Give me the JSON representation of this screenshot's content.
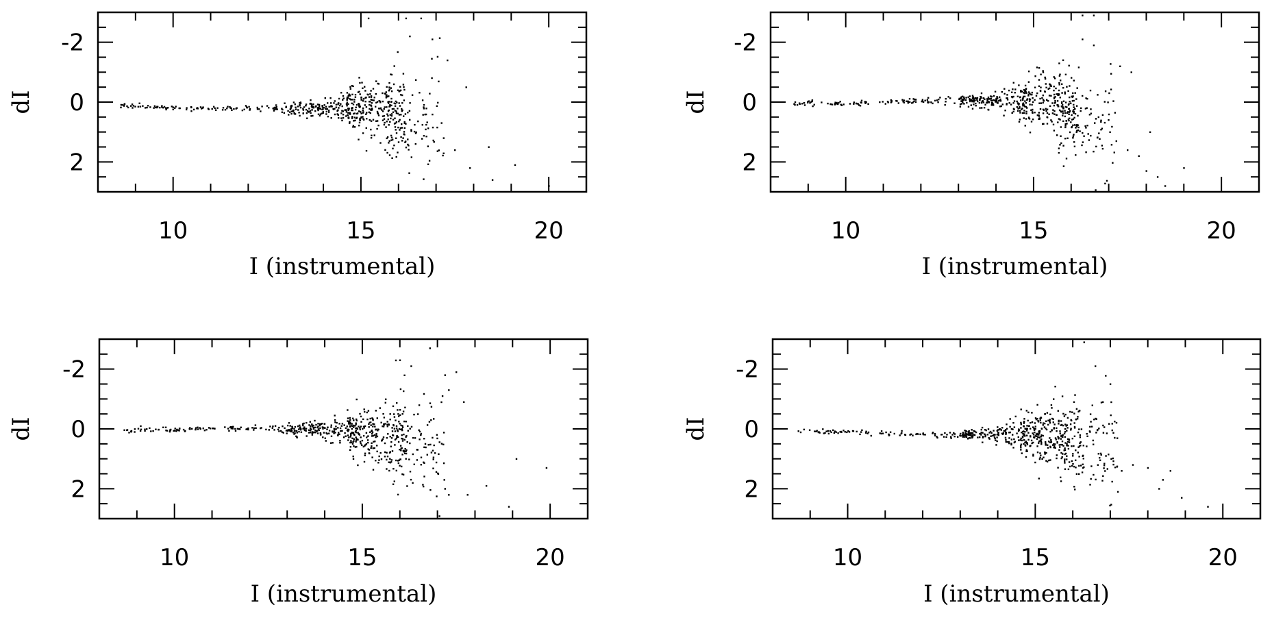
{
  "chart_data": [
    {
      "type": "scatter",
      "xlabel": "I (instrumental)",
      "ylabel": "dI",
      "xlim": [
        8,
        21
      ],
      "ylim": [
        3,
        -3
      ],
      "xticks": [
        10,
        15,
        20
      ],
      "yticks": [
        -2,
        0,
        2
      ],
      "x_minor_step": 1,
      "y_minor_step": 0.5,
      "grid": false,
      "trend": [
        [
          8.5,
          0.12
        ],
        [
          10,
          0.18
        ],
        [
          11,
          0.2
        ],
        [
          12,
          0.22
        ],
        [
          13,
          0.22
        ],
        [
          14,
          0.2
        ],
        [
          15,
          0.22
        ],
        [
          16,
          0.45
        ],
        [
          17,
          0.8
        ]
      ],
      "tail_points": [
        [
          16.2,
          -2.8
        ],
        [
          16.6,
          -2.8
        ],
        [
          16.3,
          -2.2
        ],
        [
          16.9,
          -2.1
        ],
        [
          17.3,
          -1.4
        ],
        [
          17.8,
          -0.5
        ],
        [
          17.2,
          1.2
        ],
        [
          17.5,
          1.6
        ],
        [
          17.9,
          2.2
        ],
        [
          18.4,
          1.5
        ],
        [
          18.5,
          2.6
        ],
        [
          19.1,
          2.1
        ],
        [
          20.0,
          2.8
        ],
        [
          15.2,
          -2.8
        ]
      ]
    },
    {
      "type": "scatter",
      "xlabel": "I (instrumental)",
      "ylabel": "dI",
      "xlim": [
        8,
        21
      ],
      "ylim": [
        3,
        -3
      ],
      "xticks": [
        10,
        15,
        20
      ],
      "yticks": [
        -2,
        0,
        2
      ],
      "x_minor_step": 1,
      "y_minor_step": 0.5,
      "grid": false,
      "trend": [
        [
          8.7,
          0.05
        ],
        [
          10,
          0.05
        ],
        [
          11,
          0.0
        ],
        [
          12,
          -0.05
        ],
        [
          13,
          -0.05
        ],
        [
          14,
          -0.05
        ],
        [
          15,
          0.0
        ],
        [
          16,
          0.3
        ],
        [
          17,
          0.8
        ]
      ],
      "tail_points": [
        [
          16.3,
          -2.9
        ],
        [
          16.6,
          -2.9
        ],
        [
          16.3,
          -2.1
        ],
        [
          16.6,
          -1.9
        ],
        [
          17.3,
          -1.2
        ],
        [
          17.6,
          -1.0
        ],
        [
          17.2,
          1.3
        ],
        [
          17.5,
          1.6
        ],
        [
          17.8,
          1.8
        ],
        [
          18.0,
          2.3
        ],
        [
          18.3,
          2.5
        ],
        [
          18.5,
          2.8
        ],
        [
          19.0,
          2.2
        ],
        [
          18.1,
          1.0
        ]
      ]
    },
    {
      "type": "scatter",
      "xlabel": "I (instrumental)",
      "ylabel": "dI",
      "xlim": [
        8,
        21
      ],
      "ylim": [
        3,
        -3
      ],
      "xticks": [
        10,
        15,
        20
      ],
      "yticks": [
        -2,
        0,
        2
      ],
      "x_minor_step": 1,
      "y_minor_step": 0.5,
      "grid": false,
      "trend": [
        [
          8.7,
          0.05
        ],
        [
          10,
          0.03
        ],
        [
          11,
          0.0
        ],
        [
          12,
          0.0
        ],
        [
          13,
          0.0
        ],
        [
          14,
          0.0
        ],
        [
          15,
          0.1
        ],
        [
          16,
          0.4
        ],
        [
          17,
          0.7
        ]
      ],
      "tail_points": [
        [
          16.8,
          -2.7
        ],
        [
          16.0,
          -2.3
        ],
        [
          16.3,
          -2.1
        ],
        [
          17.2,
          -1.8
        ],
        [
          17.5,
          -1.9
        ],
        [
          17.3,
          -1.3
        ],
        [
          17.7,
          -0.9
        ],
        [
          17.2,
          2.0
        ],
        [
          17.3,
          2.2
        ],
        [
          17.8,
          2.2
        ],
        [
          18.3,
          1.9
        ],
        [
          18.9,
          2.6
        ],
        [
          19.1,
          1.0
        ],
        [
          19.9,
          1.3
        ]
      ]
    },
    {
      "type": "scatter",
      "xlabel": "I (instrumental)",
      "ylabel": "dI",
      "xlim": [
        8,
        21
      ],
      "ylim": [
        3,
        -3
      ],
      "xticks": [
        10,
        15,
        20
      ],
      "yticks": [
        -2,
        0,
        2
      ],
      "x_minor_step": 1,
      "y_minor_step": 0.5,
      "grid": false,
      "trend": [
        [
          8.7,
          0.05
        ],
        [
          10,
          0.1
        ],
        [
          11,
          0.15
        ],
        [
          12,
          0.2
        ],
        [
          13,
          0.2
        ],
        [
          14,
          0.15
        ],
        [
          15,
          0.15
        ],
        [
          16,
          0.3
        ],
        [
          17,
          0.6
        ]
      ],
      "tail_points": [
        [
          16.3,
          -2.9
        ],
        [
          16.6,
          -2.1
        ],
        [
          17.0,
          -1.5
        ],
        [
          16.8,
          -0.9
        ],
        [
          17.3,
          1.4
        ],
        [
          17.6,
          1.2
        ],
        [
          18.0,
          1.3
        ],
        [
          18.4,
          1.7
        ],
        [
          18.6,
          1.4
        ],
        [
          18.9,
          2.3
        ],
        [
          17.2,
          2.1
        ],
        [
          19.6,
          2.6
        ],
        [
          18.3,
          2.0
        ]
      ]
    }
  ]
}
